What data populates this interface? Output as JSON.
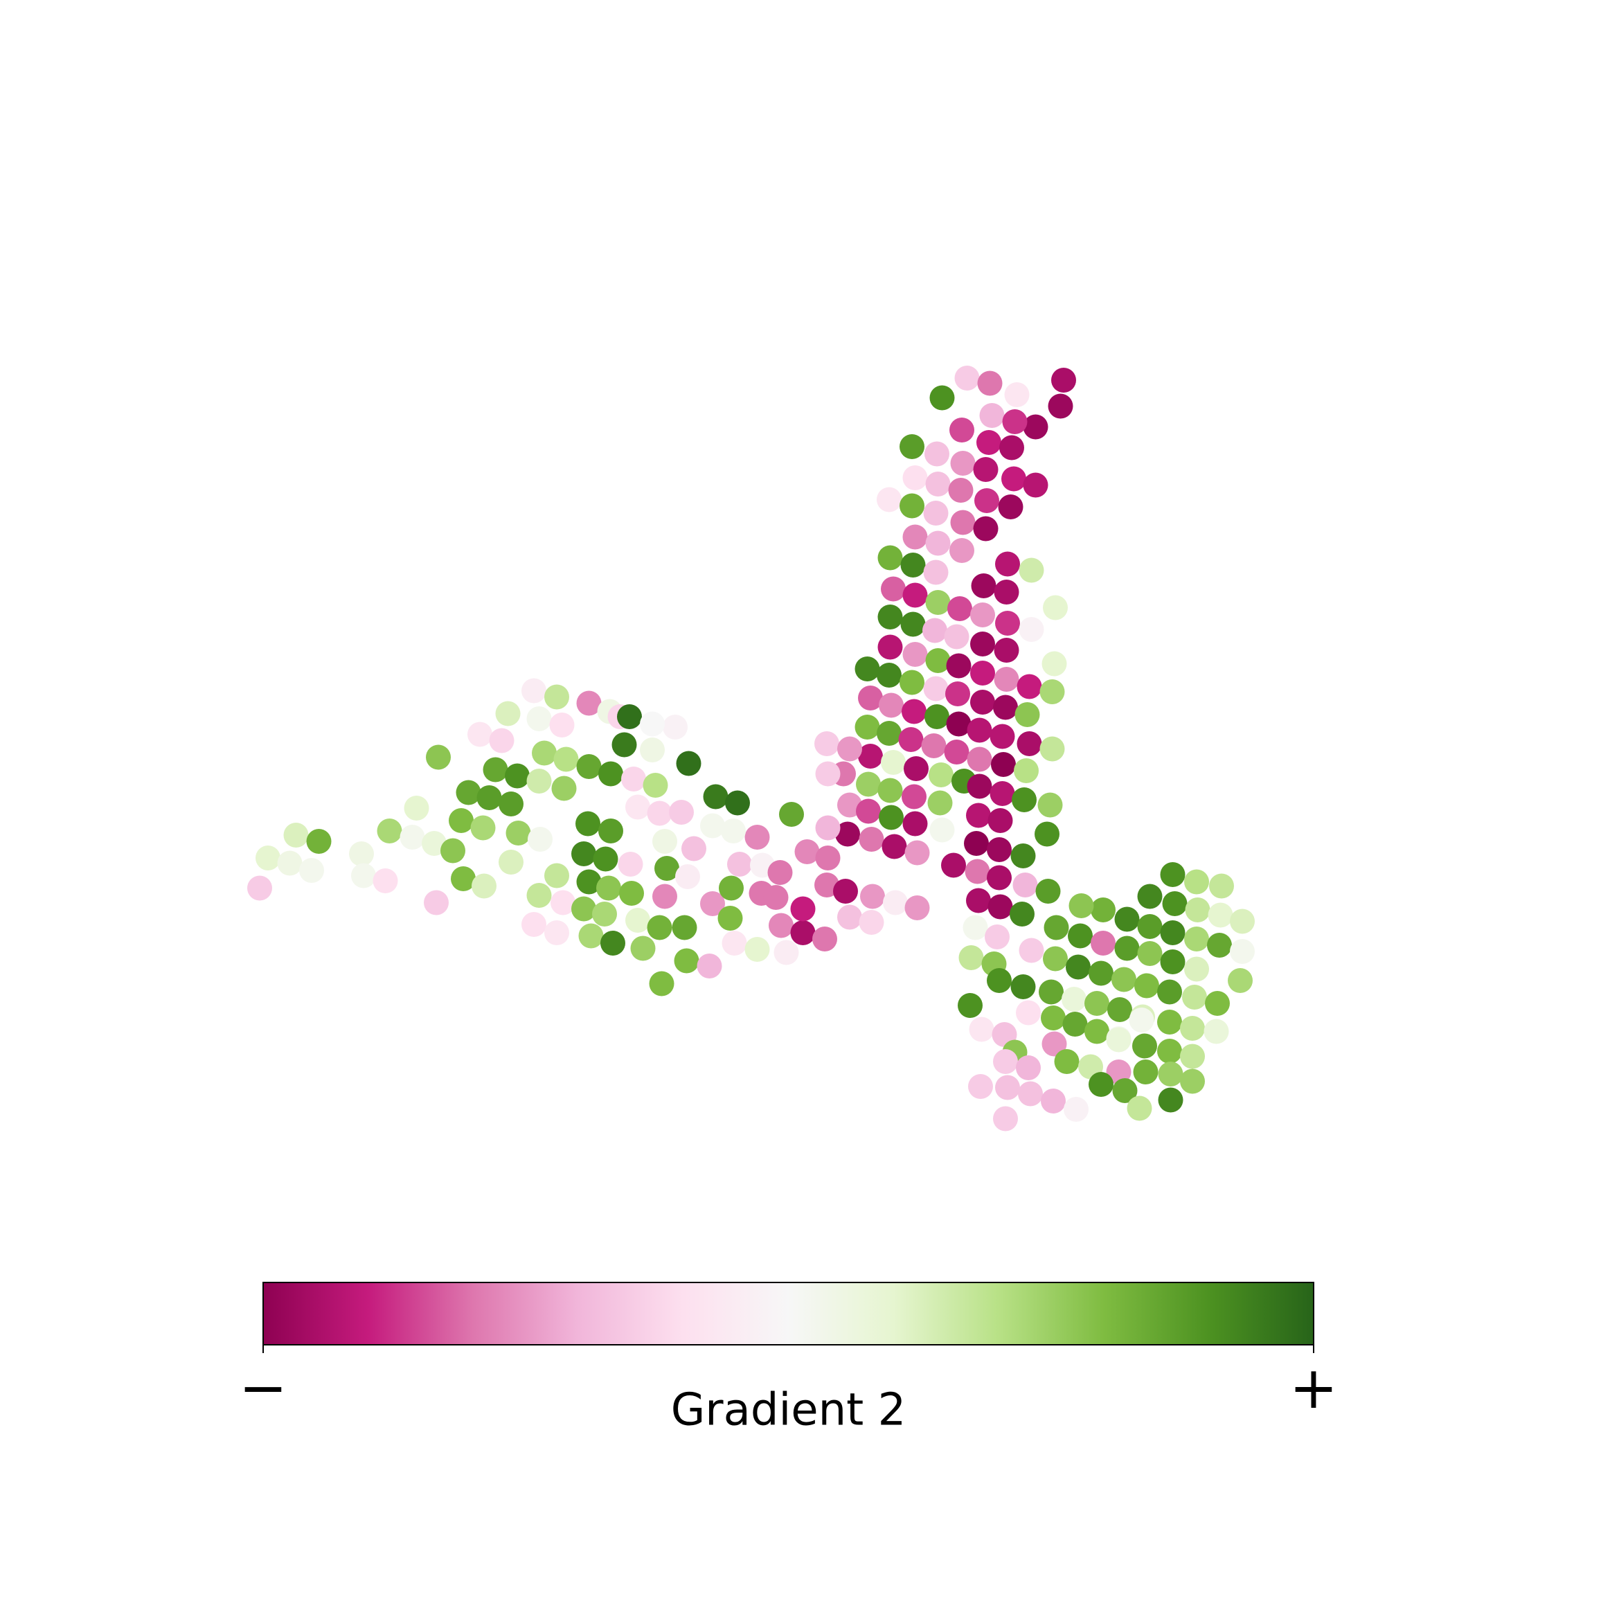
{
  "chart_data": {
    "type": "scatter",
    "x": [
      1024,
      1021,
      931,
      953,
      907,
      979,
      997,
      926,
      955,
      977,
      878,
      902,
      952,
      974,
      927,
      949,
      976,
      997,
      881,
      903,
      925,
      950,
      973,
      856,
      878,
      901,
      927,
      949,
      881,
      903,
      926,
      857,
      879,
      901,
      947,
      970,
      993,
      860,
      881,
      903,
      924,
      946,
      969,
      1016,
      857,
      879,
      900,
      921,
      946,
      970,
      993,
      835,
      857,
      881,
      903,
      923,
      946,
      969,
      1015,
      856,
      878,
      901,
      922,
      946,
      969,
      991,
      1013,
      838,
      858,
      880,
      902,
      923,
      943,
      968,
      989,
      835,
      856,
      877,
      899,
      921,
      943,
      965,
      991,
      1013,
      838,
      860,
      882,
      906,
      928,
      943,
      966,
      988,
      812,
      836,
      857,
      880,
      905,
      942,
      965,
      986,
      1011,
      796,
      818,
      797,
      818,
      836,
      858,
      881,
      907,
      940,
      963,
      962,
      985,
      1008,
      816,
      839,
      861,
      883,
      918,
      941,
      962,
      987,
      942,
      963,
      250,
      258,
      279,
      300,
      285,
      307,
      348,
      350,
      371,
      375,
      397,
      401,
      418,
      420,
      422,
      436,
      446,
      444,
      466,
      465,
      451,
      471,
      477,
      492,
      492,
      499,
      498,
      489,
      462,
      483,
      514,
      536,
      519,
      541,
      524,
      545,
      519,
      543,
      520,
      519,
      514,
      536,
      542,
      536,
      562,
      567,
      562,
      569,
      566,
      567,
      587,
      597,
      606,
      601,
      567,
      588,
      610,
      631,
      614,
      635,
      588,
      583,
      607,
      586,
      590,
      582,
      608,
      614,
      619,
      637,
      635,
      640,
      642,
      640,
      656,
      663,
      662,
      659,
      661,
      683,
      686,
      668,
      689,
      710,
      712,
      704,
      703,
      707,
      729,
      733,
      729,
      734,
      751,
      747,
      752,
      757,
      773,
      794,
      773,
      762,
      777,
      797,
      796,
      814,
      818,
      839,
      840,
      862,
      883,
      797,
      650,
      628,
      628,
      686,
      706,
      1129,
      1152,
      1176,
      1107,
      1131,
      1153,
      1175,
      1196,
      1085,
      1107,
      1129,
      1152,
      1174,
      1196,
      1062,
      1041,
      1009,
      984,
      1017,
      1040,
      1062,
      1085,
      1107,
      1129,
      1152,
      1194,
      939,
      960,
      993,
      1016,
      1038,
      1060,
      1082,
      1104,
      1126,
      1150,
      1172,
      935,
      957,
      962,
      985,
      1012,
      1034,
      1056,
      1078,
      1100,
      1126,
      1148,
      1171,
      934,
      945,
      967,
      990,
      1014,
      1035,
      1056,
      1077,
      1102,
      1126,
      1148,
      977,
      968,
      990,
      1015,
      1027,
      1050,
      1077,
      1103,
      1127,
      1148,
      944,
      970,
      992,
      1014,
      1036,
      1060,
      1083,
      1097,
      1127,
      968,
      1099,
      1077
    ],
    "y": [
      366,
      391,
      364,
      369,
      383,
      380,
      411,
      414,
      400,
      406,
      430,
      437,
      426,
      431,
      446,
      452,
      461,
      467,
      460,
      466,
      472,
      482,
      488,
      481,
      487,
      494,
      503,
      509,
      517,
      523,
      530,
      537,
      544,
      551,
      564,
      543,
      549,
      567,
      573,
      580,
      586,
      592,
      570,
      585,
      594,
      601,
      607,
      613,
      620,
      600,
      606,
      644,
      623,
      630,
      636,
      641,
      648,
      626,
      639,
      650,
      657,
      663,
      668,
      676,
      654,
      661,
      666,
      672,
      679,
      685,
      690,
      697,
      703,
      681,
      688,
      700,
      706,
      712,
      718,
      724,
      731,
      709,
      716,
      721,
      728,
      734,
      740,
      746,
      752,
      757,
      736,
      742,
      745,
      755,
      761,
      767,
      773,
      785,
      764,
      770,
      775,
      716,
      721,
      745,
      775,
      781,
      787,
      793,
      799,
      812,
      790,
      818,
      824,
      803,
      803,
      808,
      815,
      821,
      833,
      839,
      845,
      852,
      867,
      873,
      855,
      826,
      831,
      838,
      804,
      810,
      822,
      843,
      848,
      800,
      806,
      778,
      812,
      869,
      729,
      819,
      846,
      790,
      853,
      797,
      763,
      768,
      741,
      774,
      830,
      802,
      747,
      687,
      707,
      713,
      665,
      671,
      692,
      698,
      725,
      731,
      752,
      759,
      808,
      862,
      890,
      898,
      869,
      843,
      822,
      849,
      875,
      901,
      793,
      677,
      685,
      690,
      690,
      717,
      738,
      745,
      750,
      756,
      777,
      783,
      800,
      827,
      832,
      855,
      908,
      880,
      860,
      886,
      913,
      947,
      893,
      863,
      836,
      810,
      782,
      735,
      844,
      893,
      925,
      930,
      870,
      817,
      767,
      773,
      832,
      855,
      884,
      908,
      914,
      860,
      806,
      833,
      840,
      864,
      891,
      917,
      898,
      904,
      875,
      784,
      820,
      826,
      852,
      858,
      883,
      888,
      863,
      869,
      874,
      797,
      700,
      697,
      722,
      795,
      800,
      842,
      849,
      853,
      863,
      870,
      876,
      881,
      887,
      885,
      892,
      898,
      904,
      910,
      916,
      876,
      872,
      858,
      880,
      893,
      901,
      908,
      913,
      918,
      926,
      933,
      944,
      893,
      902,
      915,
      923,
      931,
      937,
      943,
      949,
      955,
      960,
      966,
      922,
      928,
      944,
      950,
      955,
      962,
      966,
      972,
      979,
      984,
      990,
      993,
      968,
      991,
      996,
      975,
      980,
      986,
      993,
      1000,
      1007,
      1012,
      1017,
      1013,
      1022,
      1028,
      1005,
      1022,
      1027,
      1032,
      1032,
      1034,
      1041,
      1046,
      1047,
      1053,
      1060,
      1068,
      1044,
      1050,
      1067,
      1059,
      1077,
      982,
      1001
    ],
    "values": [
      -0.9,
      -0.95,
      -0.3,
      -0.6,
      0.8,
      -0.15,
      -0.95,
      -0.7,
      -0.4,
      -0.75,
      0.75,
      -0.35,
      -0.8,
      -0.9,
      -0.5,
      -0.85,
      -0.8,
      -0.85,
      -0.2,
      -0.35,
      -0.6,
      -0.75,
      -0.95,
      -0.15,
      0.65,
      -0.35,
      -0.6,
      -0.95,
      -0.55,
      -0.4,
      -0.5,
      0.65,
      0.85,
      -0.35,
      -0.95,
      -0.85,
      0.3,
      -0.65,
      -0.8,
      0.5,
      -0.7,
      -0.5,
      -0.9,
      0.2,
      0.85,
      0.85,
      -0.4,
      -0.35,
      -0.95,
      -0.75,
      -0.05,
      0.85,
      -0.85,
      -0.5,
      0.6,
      -0.95,
      -0.8,
      -0.9,
      0.2,
      0.85,
      0.6,
      -0.3,
      -0.75,
      -0.9,
      -0.55,
      -0.8,
      0.45,
      -0.65,
      -0.55,
      -0.8,
      0.8,
      -1,
      -0.85,
      -0.95,
      0.55,
      0.6,
      0.7,
      -0.75,
      -0.6,
      -0.7,
      -0.6,
      -0.85,
      -0.9,
      0.35,
      -0.85,
      0.2,
      -0.9,
      0.4,
      0.8,
      -0.95,
      -1,
      0.4,
      -0.6,
      0.5,
      0.55,
      -0.7,
      0.5,
      -0.85,
      -0.85,
      0.8,
      0.5,
      -0.3,
      -0.5,
      -0.3,
      -0.5,
      -0.7,
      0.8,
      -0.9,
      0.05,
      -1,
      -0.9,
      -0.95,
      0.85,
      0.8,
      -0.95,
      -0.6,
      -0.9,
      -0.5,
      -0.9,
      -0.6,
      -0.9,
      -0.4,
      -0.9,
      -0.95,
      -0.3,
      0.2,
      0.1,
      0.05,
      0.25,
      0.65,
      0.1,
      0.05,
      -0.2,
      0.45,
      0.05,
      0.2,
      0.15,
      -0.3,
      0.55,
      0.55,
      0.6,
      0.6,
      0.25,
      0.45,
      0.7,
      0.75,
      0.7,
      0.75,
      0.25,
      0.5,
      0.8,
      0.25,
      -0.15,
      -0.25,
      -0.1,
      0.35,
      0.05,
      -0.2,
      0.45,
      0.4,
      0.3,
      0.5,
      0.05,
      0.35,
      -0.2,
      -0.15,
      -0.2,
      0.35,
      0.85,
      0.8,
      0.55,
      0.45,
      0.8,
      -0.55,
      0.1,
      -0.25,
      0.95,
      0.9,
      0.7,
      0.8,
      -0.25,
      0.4,
      -0.15,
      -0.25,
      0.75,
      0.8,
      -0.25,
      0.55,
      0.85,
      0.45,
      0.6,
      0.2,
      0.5,
      0.6,
      0.65,
      -0.55,
      0.7,
      0.1,
      -0.3,
      0.95,
      -0.1,
      0.7,
      0.6,
      -0.4,
      -0.5,
      -0.35,
      0.9,
      0.95,
      -0.35,
      0.65,
      0.6,
      -0.15,
      0.2,
      -0.6,
      -0.55,
      -0.05,
      -0.6,
      -0.6,
      -0.55,
      -0.1,
      -0.9,
      -0.6,
      -0.8,
      0.7,
      -0.55,
      -0.6,
      -0.6,
      -0.9,
      -0.35,
      -0.25,
      -0.5,
      -0.1,
      -0.5,
      -0.4,
      -0.05,
      0,
      0.1,
      0.05,
      0.05,
      0.8,
      0.4,
      0.35,
      0.85,
      0.8,
      0.35,
      0.2,
      0.25,
      0.85,
      0.75,
      0.85,
      0.45,
      0.7,
      0.05,
      0.65,
      0.55,
      0.75,
      0.85,
      0.7,
      0.8,
      -0.6,
      0.75,
      0.55,
      0.8,
      0.25,
      0.45,
      0.05,
      -0.3,
      -0.3,
      0.55,
      0.85,
      0.75,
      0.55,
      0.6,
      0.75,
      0.35,
      0.6,
      0.35,
      0.55,
      0.8,
      0.85,
      0.7,
      0.15,
      0.55,
      0.7,
      0.25,
      0.6,
      0.35,
      0.15,
      0.8,
      -0.15,
      -0.35,
      -0.2,
      0.6,
      0.7,
      0.6,
      0.05,
      0.7,
      0.6,
      0.35,
      0.55,
      -0.3,
      -0.4,
      -0.5,
      0.6,
      0.3,
      -0.5,
      0.65,
      0.5,
      0.5,
      -0.3,
      -0.35,
      -0.35,
      -0.4,
      -0.05,
      0.8,
      0.7,
      0.35,
      0.85,
      -0.3,
      0.05,
      0.15
    ],
    "xlim": [
      0,
      1550
    ],
    "ylim": [
      1550,
      0
    ],
    "colorbar": {
      "label": "Gradient 2",
      "lim": [
        -1,
        1
      ],
      "ticks": [
        {
          "value": -1,
          "label": "−"
        },
        {
          "value": 1,
          "label": "+"
        }
      ],
      "colormap": [
        "#8e0152",
        "#c51b7d",
        "#de77ae",
        "#f1b6da",
        "#fde0ef",
        "#f7f7f7",
        "#e6f5d0",
        "#b8e186",
        "#7fbc41",
        "#4d9221",
        "#276419"
      ]
    }
  }
}
